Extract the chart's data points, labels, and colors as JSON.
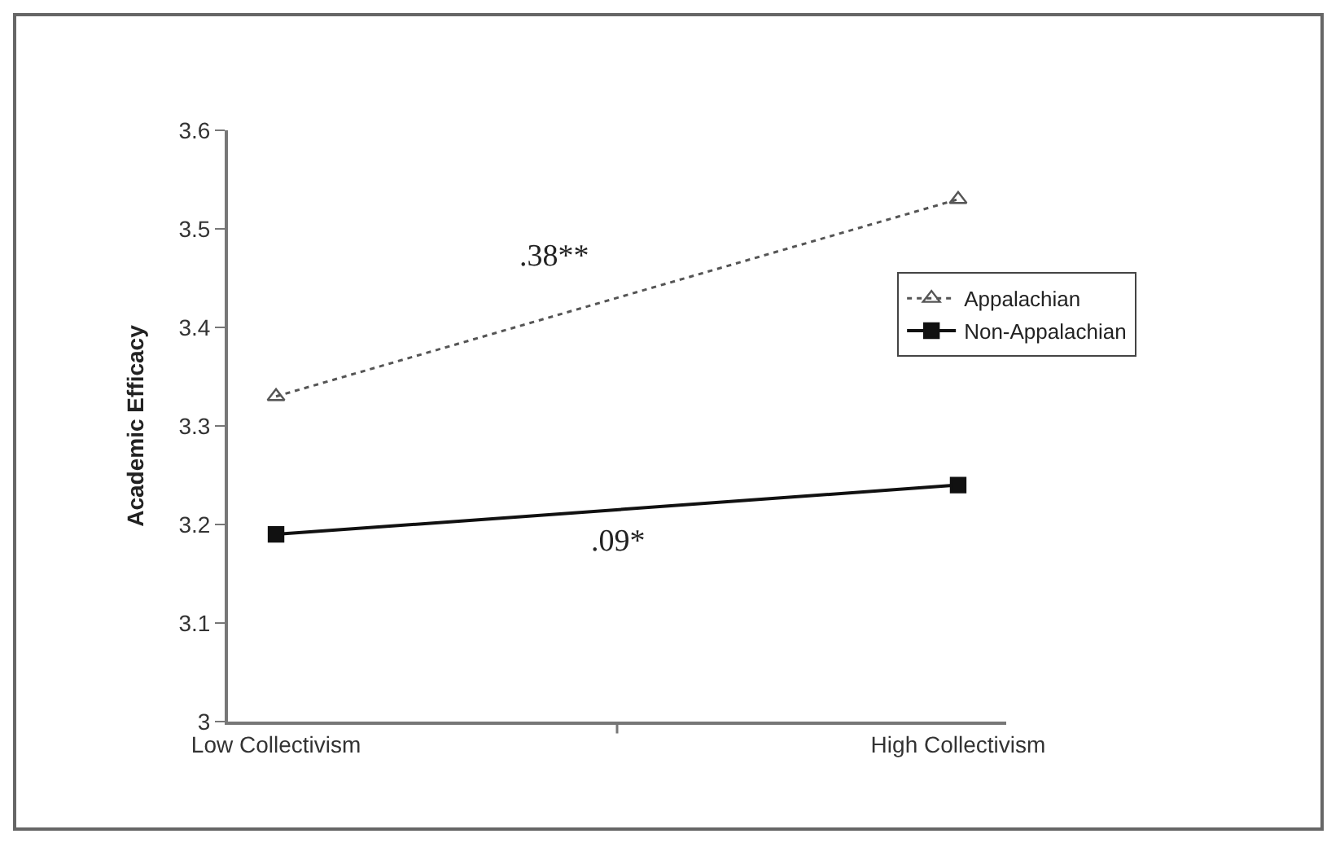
{
  "chart_data": {
    "type": "line",
    "ylabel": "Academic Efficacy",
    "categories": [
      "Low Collectivism",
      "High Collectivism"
    ],
    "series": [
      {
        "name": "Appalachian",
        "color": "#555555",
        "values": [
          3.33,
          3.53
        ],
        "marker": "triangle",
        "line_style": "dotted"
      },
      {
        "name": "Non-Appalachian",
        "color": "#111111",
        "values": [
          3.19,
          3.24
        ],
        "marker": "square",
        "line_style": "solid"
      }
    ],
    "ylim": [
      3,
      3.6
    ],
    "yticks": [
      3,
      3.1,
      3.2,
      3.3,
      3.4,
      3.5,
      3.6
    ],
    "grid": false,
    "legend": "right",
    "annotations": [
      ".38**",
      ".09*"
    ]
  }
}
